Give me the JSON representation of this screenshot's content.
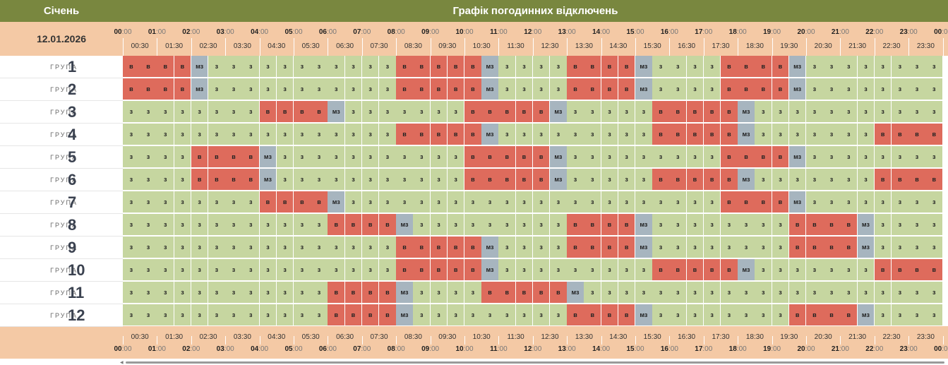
{
  "header": {
    "month": "Січень",
    "title": "Графік погодинних відключень",
    "date": "12.01.2026"
  },
  "hours": [
    "00",
    "01",
    "02",
    "03",
    "04",
    "05",
    "06",
    "07",
    "08",
    "09",
    "10",
    "11",
    "12",
    "13",
    "14",
    "15",
    "16",
    "17",
    "18",
    "19",
    "20",
    "21",
    "22",
    "23",
    "00"
  ],
  "minutes_label": ":00",
  "half_hours": [
    "00:30",
    "01:30",
    "02:30",
    "03:30",
    "04:30",
    "05:30",
    "06:30",
    "07:30",
    "08:30",
    "09:30",
    "10:30",
    "11:30",
    "12:30",
    "13:30",
    "14:30",
    "15:30",
    "16:30",
    "17:30",
    "18:30",
    "19:30",
    "20:30",
    "21:30",
    "22:30",
    "23:30"
  ],
  "group_word": "ГРУПА",
  "status_text": {
    "z": "з",
    "v": "в",
    "m": "мз"
  },
  "colors": {
    "z": "#c6d6a0",
    "v": "#de6b5c",
    "m": "#a7b5bf",
    "header": "#79873f",
    "timeband": "#f4c9a5"
  },
  "groups": [
    {
      "number": "1",
      "slots": "vvvvmzzzzzzzzzzzvvvvvmzzzzvvvvmzzzzvvvvmzzzzzzzz"
    },
    {
      "number": "2",
      "slots": "vvvvmzzzzzzzzzzzvvvvvmzzzzvvvvmzzzzvvvvmzzzzzzzz"
    },
    {
      "number": "3",
      "slots": "zzzzzzzzvvvvmzzzzzzzvvvvvmzzzzzvvvvvmzzzzzzzzzzz"
    },
    {
      "number": "4",
      "slots": "zzzzzzzzzzzzzzzzvvvvvmzzzzzzzzzvvvvvmzzzzzzzvvvv"
    },
    {
      "number": "5",
      "slots": "zzzzvvvvmzzzzzzzzzzzvvvvvmzzzzzzzzzvvvvmzzzzzzzz"
    },
    {
      "number": "6",
      "slots": "zzzzvvvvmzzzzzzzzzzzvvvvvmzzzzzvvvvvmzzzzzzzvvvv"
    },
    {
      "number": "7",
      "slots": "zzzzzzzzvvvvmzzzzzzzzzzzzzzzzzzzzzzvvvvmzzzzzzzz"
    },
    {
      "number": "8",
      "slots": "zzzzzzzzzzzzvvvvmzzzzzzzzzvvvvmzzzzzzzzvvvvmzzzz"
    },
    {
      "number": "9",
      "slots": "zzzzzzzzzzzzzzzzvvvvvmzzzzvvvvmzzzzzzzzvvvvmzzzz"
    },
    {
      "number": "10",
      "slots": "zzzzzzzzzzzzzzzzvvvvvmzzzzzzzzzvvvvvmzzzzzzzvvvv"
    },
    {
      "number": "11",
      "slots": "zzzzzzzzzzzzvvvvmzzzzvvvvvmzzzzzzzzzzzzzzzzzzzzz"
    },
    {
      "number": "12",
      "slots": "zzzzzzzzzzzzvvvvmzzzzzzzzzvvvvmzzzzzzzzvvvvmzzzz"
    }
  ]
}
